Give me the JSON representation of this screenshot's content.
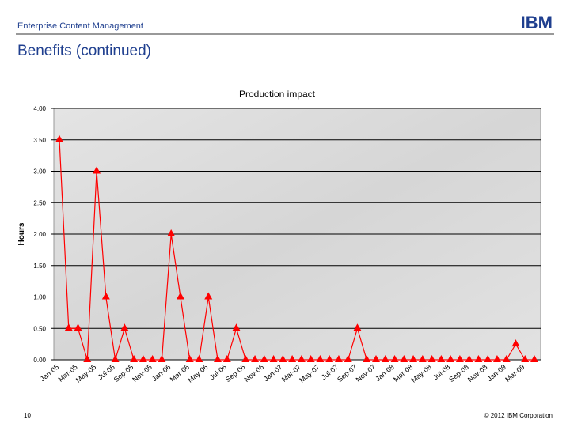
{
  "header": {
    "section": "Enterprise Content Management",
    "logo": "IBM",
    "title": "Benefits (continued)"
  },
  "footer": {
    "page": "10",
    "copyright": "© 2012 IBM Corporation"
  },
  "chart_data": {
    "type": "line",
    "title": "Production impact",
    "y_label": "Hours",
    "categories": [
      "Jan-05",
      null,
      "Mar-05",
      null,
      "May-05",
      null,
      "Jul-05",
      null,
      "Sep-05",
      null,
      "Nov-05",
      null,
      "Jan-06",
      null,
      "Mar-06",
      null,
      "May-06",
      null,
      "Jul-06",
      null,
      "Sep-06",
      null,
      "Nov-06",
      null,
      "Jan-07",
      null,
      "Mar-07",
      null,
      "May-07",
      null,
      "Jul-07",
      null,
      "Sep-07",
      null,
      "Nov-07",
      null,
      "Jan-08",
      null,
      "Mar-08",
      null,
      "May-08",
      null,
      "Jul-08",
      null,
      "Sep-08",
      null,
      "Nov-08",
      null,
      "Jan-09",
      null,
      "Mar-09",
      null
    ],
    "values": [
      3.5,
      0.5,
      0.5,
      0,
      3,
      1,
      0,
      0.5,
      0,
      0,
      0,
      0,
      2,
      1,
      0,
      0,
      1,
      0,
      0,
      0.5,
      0,
      0,
      0,
      0,
      0,
      0,
      0,
      0,
      0,
      0,
      0,
      0,
      0.5,
      0,
      0,
      0,
      0,
      0,
      0,
      0,
      0,
      0,
      0,
      0,
      0,
      0,
      0,
      0,
      0,
      0.25,
      0,
      0
    ],
    "color": "#ff0000",
    "ylim": [
      0,
      4
    ],
    "yticks": [
      {
        "value": 0,
        "label": "0.00"
      },
      {
        "value": 0.5,
        "label": "0.50"
      },
      {
        "value": 1,
        "label": "1.00"
      },
      {
        "value": 1.5,
        "label": "1.50"
      },
      {
        "value": 2,
        "label": "2.00"
      },
      {
        "value": 2.5,
        "label": "2.50"
      },
      {
        "value": 3,
        "label": "3.00"
      },
      {
        "value": 3.5,
        "label": "3.50"
      },
      {
        "value": 4,
        "label": "4.00"
      }
    ],
    "grid": true
  }
}
